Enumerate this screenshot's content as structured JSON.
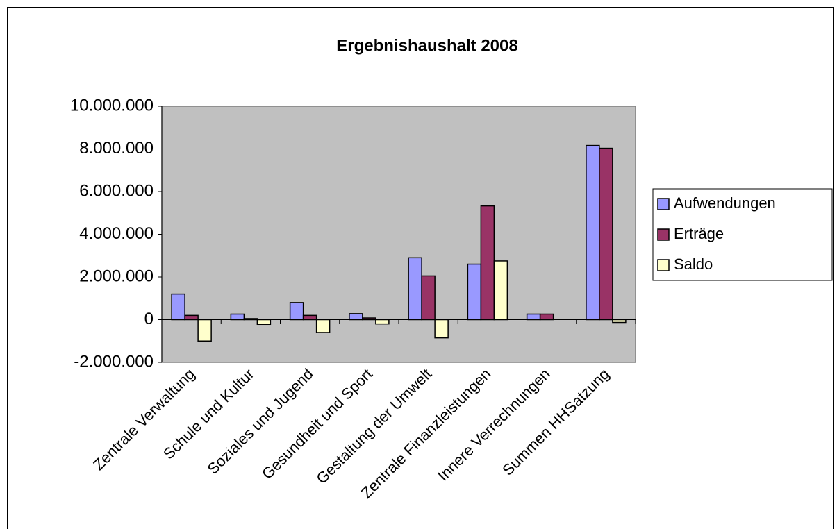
{
  "chart_data": {
    "type": "bar",
    "title": "Ergebnishaushalt 2008",
    "categories": [
      "Zentrale Verwaltung",
      "Schule und Kultur",
      "Soziales und Jugend",
      "Gesundheit und Sport",
      "Gestaltung der Umwelt",
      "Zentrale Finanzleistungen",
      "Innere Verrechnungen",
      "Summen HHSatzung"
    ],
    "series": [
      {
        "name": "Aufwendungen",
        "color": "#9999ff",
        "values": [
          1200000,
          260000,
          800000,
          280000,
          2900000,
          2600000,
          260000,
          8160000
        ]
      },
      {
        "name": "Erträge",
        "color": "#993366",
        "values": [
          200000,
          50000,
          200000,
          80000,
          2050000,
          5330000,
          260000,
          8030000
        ]
      },
      {
        "name": "Saldo",
        "color": "#ffffcc",
        "values": [
          -1000000,
          -220000,
          -600000,
          -200000,
          -850000,
          2750000,
          0,
          -130000
        ]
      }
    ],
    "ylim": [
      -2000000,
      10000000
    ],
    "yticks": [
      {
        "value": -2000000,
        "label": "-2.000.000"
      },
      0,
      {
        "value": 2000000,
        "label": "2.000.000"
      },
      {
        "value": 4000000,
        "label": "4.000.000"
      },
      {
        "value": 6000000,
        "label": "6.000.000"
      },
      {
        "value": 8000000,
        "label": "8.000.000"
      },
      {
        "value": 10000000,
        "label": "10.000.000"
      }
    ],
    "grid": false,
    "legend": "right",
    "plot_background": "#c0c0c0"
  }
}
